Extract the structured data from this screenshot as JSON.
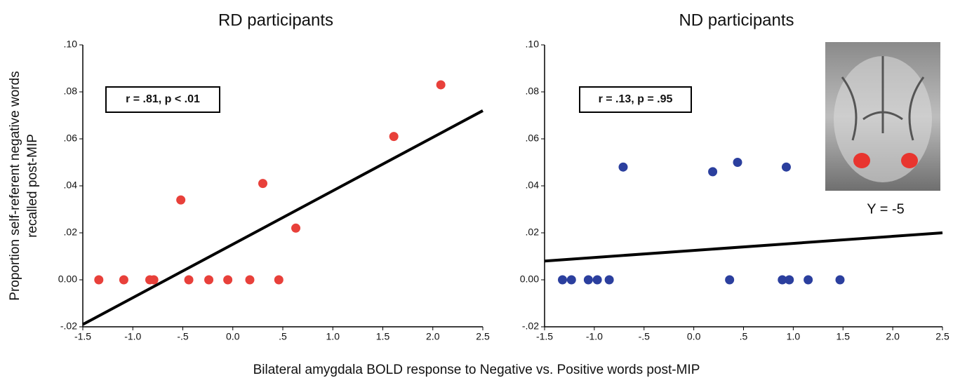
{
  "chart_data": [
    {
      "type": "scatter",
      "title": "RD participants",
      "ylabel": [
        "Proportion self-referent negative words",
        "recalled post-MIP"
      ],
      "xlabel": "Bilateral amygdala BOLD response to Negative vs. Positive words post-MIP",
      "annotation": "r = .81, p < .01",
      "xlim": [
        -1.5,
        2.5
      ],
      "ylim": [
        -0.02,
        0.1
      ],
      "xticks": [
        -1.5,
        {
          "value": -1.0,
          "label": "-1.0"
        },
        {
          "value": -0.5,
          "label": "-.5"
        },
        {
          "value": 0,
          "label": "0.0"
        },
        {
          "value": 0.5,
          "label": ".5"
        },
        {
          "value": 1.0,
          "label": "1.0"
        },
        1.5,
        {
          "value": 2.0,
          "label": "2.0"
        },
        2.5
      ],
      "yticks": [
        {
          "value": -0.02,
          "label": "-.02"
        },
        {
          "value": 0,
          "label": "0.00"
        },
        {
          "value": 0.02,
          "label": ".02"
        },
        {
          "value": 0.04,
          "label": ".04"
        },
        {
          "value": 0.06,
          "label": ".06"
        },
        {
          "value": 0.08,
          "label": ".08"
        },
        {
          "value": 0.1,
          "label": ".10"
        }
      ],
      "points": {
        "color": "#e8403a",
        "x": [
          -1.34,
          -1.09,
          -0.83,
          -0.79,
          -0.44,
          -0.24,
          -0.05,
          0.17,
          0.46,
          -0.52,
          0.3,
          0.63,
          1.61,
          2.08
        ],
        "values": [
          0,
          0,
          0,
          0,
          0,
          0,
          0,
          0,
          0,
          0.034,
          0.041,
          0.022,
          0.061,
          0.083
        ]
      },
      "fit_line": {
        "color": "#000000",
        "x": [
          -1.5,
          2.5
        ],
        "values": [
          -0.019,
          0.072
        ]
      }
    },
    {
      "type": "scatter",
      "title": "ND participants",
      "annotation": "r = .13, p = .95",
      "inset_label": "Y = -5",
      "xlim": [
        -1.5,
        2.5
      ],
      "ylim": [
        -0.02,
        0.1
      ],
      "xticks": [
        -1.5,
        {
          "value": -1.0,
          "label": "-1.0"
        },
        {
          "value": -0.5,
          "label": "-.5"
        },
        {
          "value": 0,
          "label": "0.0"
        },
        {
          "value": 0.5,
          "label": ".5"
        },
        {
          "value": 1.0,
          "label": "1.0"
        },
        1.5,
        {
          "value": 2.0,
          "label": "2.0"
        },
        2.5
      ],
      "yticks": [
        {
          "value": -0.02,
          "label": "-.02"
        },
        {
          "value": 0,
          "label": "0.00"
        },
        {
          "value": 0.02,
          "label": ".02"
        },
        {
          "value": 0.04,
          "label": ".04"
        },
        {
          "value": 0.06,
          "label": ".06"
        },
        {
          "value": 0.08,
          "label": ".08"
        },
        {
          "value": 0.1,
          "label": ".10"
        }
      ],
      "points": {
        "color": "#2b3f9e",
        "x": [
          -1.32,
          -1.23,
          -1.06,
          -0.97,
          -0.85,
          0.36,
          0.89,
          0.96,
          1.15,
          1.47,
          -0.71,
          0.19,
          0.44,
          0.93
        ],
        "values": [
          0,
          0,
          0,
          0,
          0,
          0,
          0,
          0,
          0,
          0,
          0.048,
          0.046,
          0.05,
          0.048
        ]
      },
      "fit_line": {
        "color": "#000000",
        "x": [
          -1.5,
          2.5
        ],
        "values": [
          0.008,
          0.02
        ]
      }
    }
  ]
}
